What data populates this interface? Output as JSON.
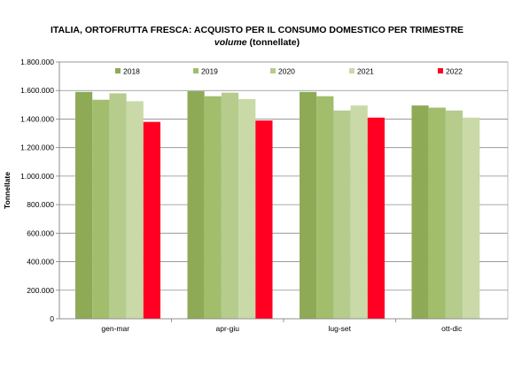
{
  "chart_data": {
    "type": "bar",
    "title": "ITALIA, ORTOFRUTTA  FRESCA: ACQUISTO PER IL CONSUMO DOMESTICO PER TRIMESTRE",
    "subtitle_italic": "volume",
    "subtitle_rest": " (tonnellate)",
    "xlabel": "",
    "ylabel": "Tonnellate",
    "ylim": [
      0,
      1800000
    ],
    "yticks": [
      {
        "value": 0,
        "label": "0"
      },
      {
        "value": 200000,
        "label": "200.000"
      },
      {
        "value": 400000,
        "label": "400.000"
      },
      {
        "value": 600000,
        "label": "600.000"
      },
      {
        "value": 800000,
        "label": "800.000"
      },
      {
        "value": 1000000,
        "label": "1.000.000"
      },
      {
        "value": 1200000,
        "label": "1.200.000"
      },
      {
        "value": 1400000,
        "label": "1.400.000"
      },
      {
        "value": 1600000,
        "label": "1.600.000"
      },
      {
        "value": 1800000,
        "label": "1.800.000"
      }
    ],
    "grid": true,
    "legend_position": "top",
    "categories": [
      "gen-mar",
      "apr-giu",
      "lug-set",
      "ott-dic"
    ],
    "series": [
      {
        "name": "2018",
        "color": "#8faa56",
        "values": [
          1590000,
          1595000,
          1590000,
          1495000
        ]
      },
      {
        "name": "2019",
        "color": "#a2bd6c",
        "values": [
          1535000,
          1560000,
          1560000,
          1480000
        ]
      },
      {
        "name": "2020",
        "color": "#b6cc8c",
        "values": [
          1580000,
          1585000,
          1460000,
          1460000
        ]
      },
      {
        "name": "2021",
        "color": "#cad9a8",
        "values": [
          1525000,
          1540000,
          1495000,
          1410000
        ]
      },
      {
        "name": "2022",
        "color": "#ff0022",
        "values": [
          1380000,
          1390000,
          1410000,
          null
        ]
      }
    ]
  }
}
